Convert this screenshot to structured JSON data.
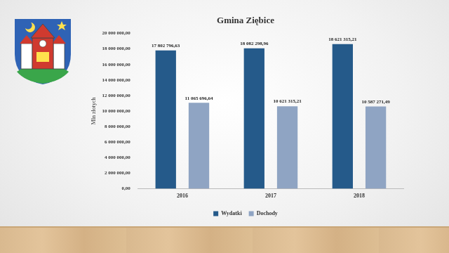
{
  "chart_data": {
    "type": "bar",
    "title": "Gmina Ziębice",
    "y_label": "Mln złotych",
    "categories": [
      "2016",
      "2017",
      "2018"
    ],
    "series": [
      {
        "name": "Wydatki",
        "color": "#255a8a",
        "values": [
          17802796.63,
          18082298.96,
          18621315.21
        ],
        "value_labels": [
          "17 802 796,63",
          "18 082 298,96",
          "18 621 315,21"
        ]
      },
      {
        "name": "Dochody",
        "color": "#8fa4c3",
        "values": [
          11065696.64,
          10621315.21,
          10587271.49
        ],
        "value_labels": [
          "11 065 696,64",
          "10 621 315,21",
          "10 587 271,49"
        ]
      }
    ],
    "ylim": [
      0,
      20000000
    ],
    "yticks": [
      {
        "value": 0,
        "label": "0,00"
      },
      {
        "value": 2000000,
        "label": "2 000 000,00"
      },
      {
        "value": 4000000,
        "label": "4 000 000,00"
      },
      {
        "value": 6000000,
        "label": "6 000 000,00"
      },
      {
        "value": 8000000,
        "label": "8 000 000,00"
      },
      {
        "value": 10000000,
        "label": "10 000 000,00"
      },
      {
        "value": 12000000,
        "label": "12 000 000,00"
      },
      {
        "value": 14000000,
        "label": "14 000 000,00"
      },
      {
        "value": 16000000,
        "label": "16 000 000,00"
      },
      {
        "value": 18000000,
        "label": "18 000 000,00"
      },
      {
        "value": 20000000,
        "label": "20 000 000,00"
      }
    ],
    "grid": false,
    "legend": "bottom",
    "data_labels": true
  }
}
